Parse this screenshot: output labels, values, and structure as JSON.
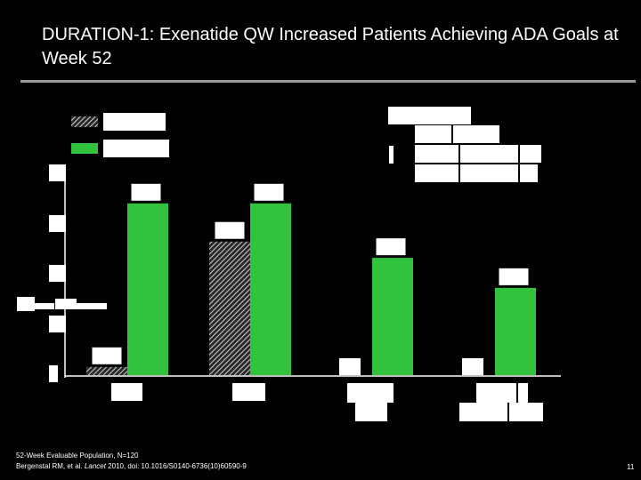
{
  "slide": {
    "title": "DURATION-1: Exenatide QW Increased Patients Achieving ADA Goals at Week 52",
    "footnote_line1": "52-Week Evaluable Population, N=120",
    "footnote_line2_prefix": "Bergenstal RM, et al. ",
    "footnote_journal": "Lancet",
    "footnote_line2_suffix": " 2010, doi: 10.1016/S0140-6736(10)60590-9",
    "page_number": "11"
  },
  "colors": {
    "background": "#000000",
    "green": "#33c23d",
    "hatched": "#bdbdbd",
    "rule": "#9a9a9a"
  },
  "chart_data": {
    "type": "bar",
    "title": "",
    "categories": [
      "",
      "",
      "",
      ""
    ],
    "series": [
      {
        "pattern": "hatched",
        "values": [
          3,
          49,
          null,
          null
        ]
      },
      {
        "pattern": "solid-green",
        "values": [
          63,
          63,
          43,
          32
        ]
      }
    ],
    "ylim": [
      0,
      75
    ],
    "grid": false,
    "legend": "top-left"
  }
}
